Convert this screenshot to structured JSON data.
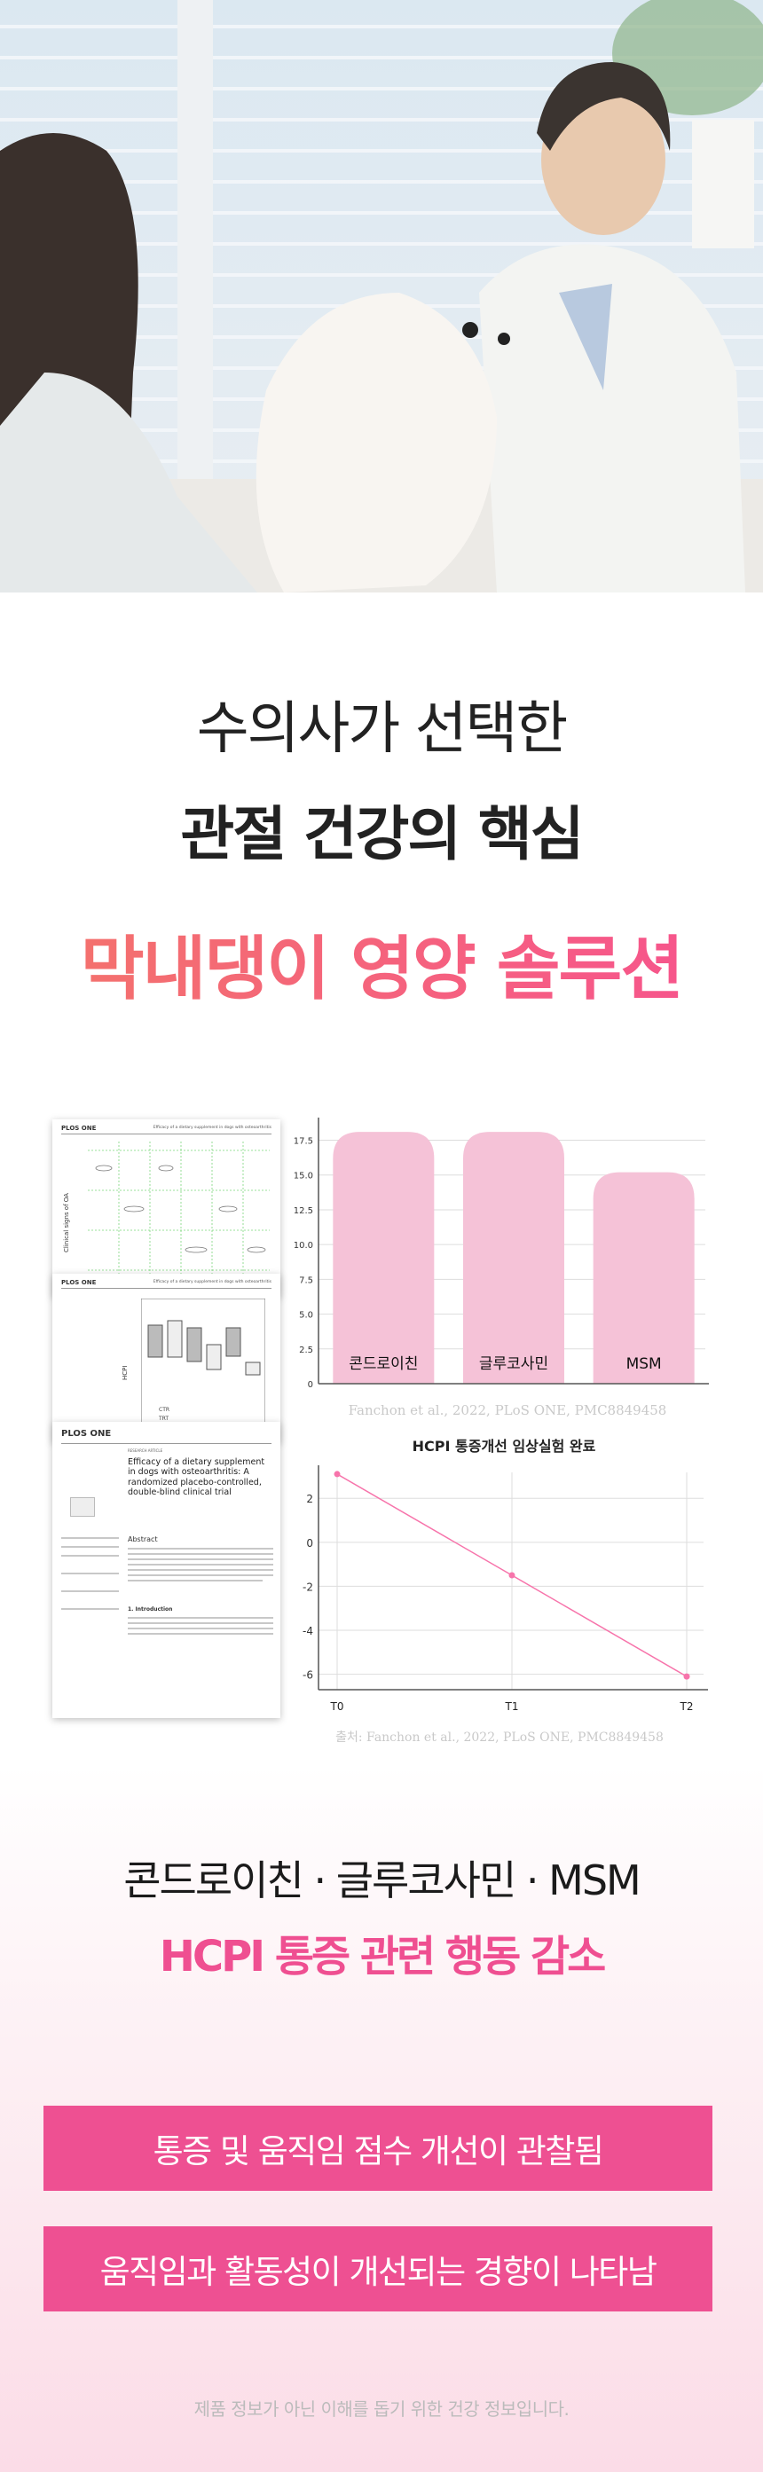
{
  "hero": {
    "image": "veterinarian-with-pomeranian-photo"
  },
  "headline": {
    "line1": "수의사가 선택한",
    "line2": "관절 건강의 핵심",
    "line3": "막내댕이 영양 솔루션",
    "accent_gradient": [
      "#f3746a",
      "#f7528f"
    ]
  },
  "papers": {
    "journal": "PLOS ONE",
    "running_head": "Efficacy of a dietary supplement in dogs with osteoarthritis",
    "article_type": "RESEARCH ARTICLE",
    "title": "Efficacy of a dietary supplement in dogs with osteoarthritis: A randomized placebo-controlled, double-blind clinical trial",
    "abstract_heading": "Abstract",
    "intro_heading": "1. Introduction",
    "legend": [
      "CTR",
      "TRT"
    ],
    "hcpi_axis": "HCPI",
    "oa_axis": "Clinical signs of OA"
  },
  "chart_data": [
    {
      "type": "bar",
      "categories": [
        "콘드로이친",
        "글루코사민",
        "MSM"
      ],
      "values": [
        18.1,
        18.1,
        15.2
      ],
      "yticks": [
        "0",
        "2.5",
        "5.0",
        "7.5",
        "10.0",
        "12.5",
        "15.0",
        "17.5"
      ],
      "ylim": [
        0,
        19
      ],
      "grid": true,
      "bar_color": "#f5c2d7",
      "caption": "Fanchon et al., 2022, PLoS ONE, PMC8849458"
    },
    {
      "type": "line",
      "title": "HCPI 통증개선 임상실험 완료",
      "categories": [
        "T0",
        "T1",
        "T2"
      ],
      "values": [
        3.1,
        -1.5,
        -6.1
      ],
      "yticks": [
        "2",
        "0",
        "-2",
        "-4",
        "-6"
      ],
      "ylim": [
        -6.7,
        3.5
      ],
      "grid": true,
      "line_color": "#f774ab",
      "caption": "출처: Fanchon et al., 2022, PLoS ONE, PMC8849458"
    }
  ],
  "summary": {
    "ingredients": "콘드로이친 · 글루코사민 · MSM",
    "headline": "HCPI 통증 관련 행동 감소",
    "points": [
      "통증 및 움직임 점수 개선이 관찰됨",
      "움직임과 활동성이 개선되는 경향이 나타남"
    ],
    "accent": "#ee5092"
  },
  "footnote": "제품 정보가 아닌 이해를 돕기 위한 건강 정보입니다."
}
